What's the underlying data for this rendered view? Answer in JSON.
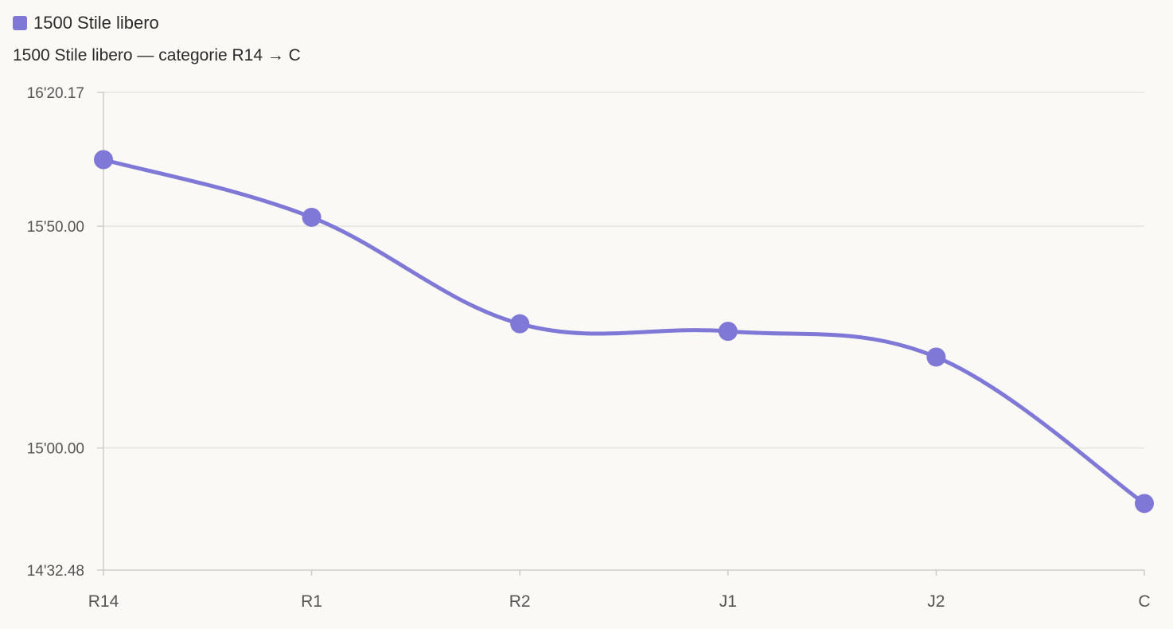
{
  "legend": {
    "label": "1500 Stile libero",
    "color": "#7f78d6"
  },
  "chart_data": {
    "type": "line",
    "title": "1500 Stile libero — categorie R14 → C",
    "xlabel": "",
    "ylabel": "",
    "categories": [
      "R14",
      "R1",
      "R2",
      "J1",
      "J2",
      "C"
    ],
    "y_unit": "seconds",
    "ylim": [
      872.48,
      980.17
    ],
    "y_ticks": [
      {
        "value": 980.17,
        "label": "16'20.17"
      },
      {
        "value": 950.0,
        "label": "15'50.00"
      },
      {
        "value": 900.0,
        "label": "15'00.00"
      },
      {
        "value": 872.48,
        "label": "14'32.48"
      }
    ],
    "series": [
      {
        "name": "1500 Stile libero",
        "color": "#7f78d6",
        "values": [
          965.0,
          952.0,
          928.0,
          926.3,
          920.5,
          887.5
        ]
      }
    ],
    "grid": true,
    "legend_position": "top-left"
  }
}
